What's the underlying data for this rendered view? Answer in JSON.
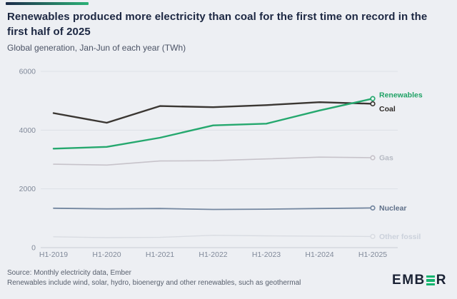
{
  "header": {
    "title": "Renewables produced more electricity than coal for the first time on record in the first half of 2025",
    "subtitle": "Global generation, Jan-Jun of each year (TWh)"
  },
  "chart_data": {
    "type": "line",
    "title": "Renewables produced more electricity than coal for the first time on record in the first half of 2025",
    "subtitle": "Global generation, Jan-Jun of each year (TWh)",
    "categories": [
      "H1-2019",
      "H1-2020",
      "H1-2021",
      "H1-2022",
      "H1-2023",
      "H1-2024",
      "H1-2025"
    ],
    "series": [
      {
        "name": "Other fossil",
        "values": [
          370,
          340,
          350,
          420,
          400,
          390,
          380
        ],
        "color": "#d9dce2",
        "label_color": "#cbd1db",
        "width": 1.4,
        "label_dy": 0
      },
      {
        "name": "Gas",
        "values": [
          2840,
          2810,
          2950,
          2960,
          3020,
          3080,
          3060
        ],
        "color": "#c7c3ca",
        "label_color": "#b6bac3",
        "width": 1.6,
        "label_dy": 0
      },
      {
        "name": "Nuclear",
        "values": [
          1340,
          1320,
          1330,
          1300,
          1310,
          1330,
          1350
        ],
        "color": "#7487a0",
        "label_color": "#5f7089",
        "width": 1.8,
        "label_dy": 0
      },
      {
        "name": "Coal",
        "values": [
          4580,
          4250,
          4820,
          4780,
          4850,
          4950,
          4896
        ],
        "color": "#3a3632",
        "label_color": "#2e2a27",
        "width": 2.4,
        "label_dy": 7
      },
      {
        "name": "Renewables",
        "values": [
          3370,
          3430,
          3740,
          4160,
          4220,
          4670,
          5072
        ],
        "color": "#25a86e",
        "label_color": "#1fa265",
        "width": 2.4,
        "label_dy": -5
      }
    ],
    "ylim": [
      0,
      6000
    ],
    "yticks": [
      0,
      2000,
      4000,
      6000
    ],
    "xlabel": "",
    "ylabel": "",
    "grid": true,
    "legend_position": "right-of-line-ends",
    "axis_text_color": "#808999",
    "gridline_color": "#dde0e7",
    "axis_line_color": "#c9cdd6",
    "marker_fill": "#f2f3f6"
  },
  "footer": {
    "source_line1": "Source: Monthly electricity data, Ember",
    "source_line2": "Renewables include wind, solar, hydro, bioenergy and other renewables, such as geothermal",
    "logo_text_pre": "EMB",
    "logo_text_post": "R",
    "logo_icon": "triple-bar-e-icon"
  }
}
